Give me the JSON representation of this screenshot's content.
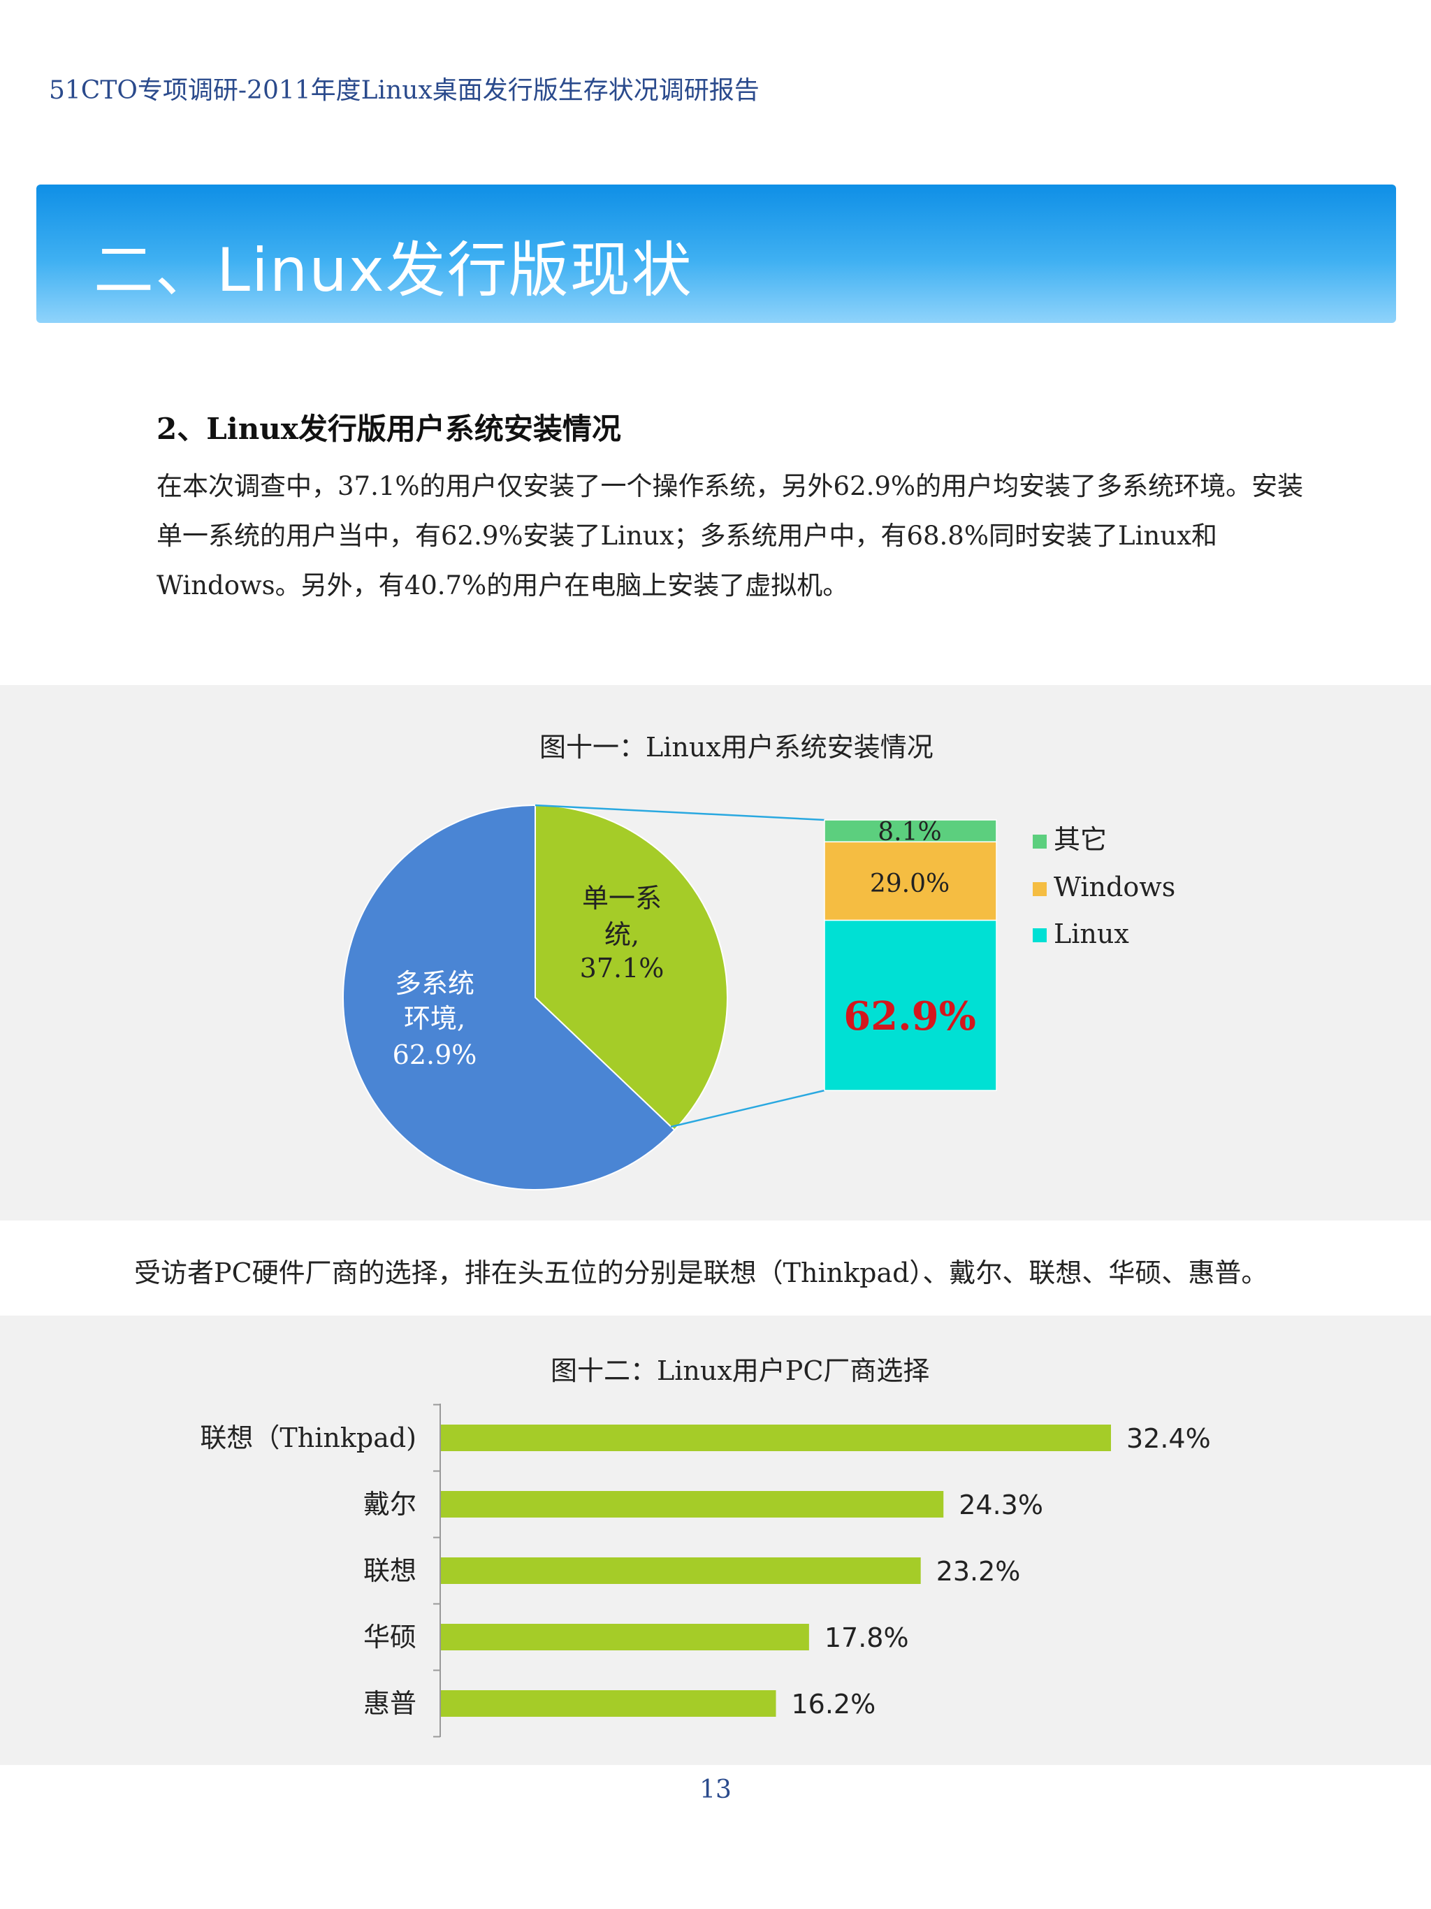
{
  "header": {
    "running_title": "51CTO专项调研-2011年度Linux桌面发行版生存状况调研报告"
  },
  "banner": {
    "title": "二、Linux发行版现状"
  },
  "section": {
    "heading": "2、Linux发行版用户系统安装情况",
    "paragraph": "在本次调查中，37.1%的用户仅安装了一个操作系统，另外62.9%的用户均安装了多系统环境。安装单一系统的用户当中，有62.9%安装了Linux；多系统用户中，有68.8%同时安装了Linux和Windows。另外，有40.7%的用户在电脑上安装了虚拟机。"
  },
  "figure11": {
    "title": "图十一：Linux用户系统安装情况",
    "pie_labels": {
      "multi_line1": "多系统",
      "multi_line2": "环境,",
      "multi_value": "62.9%",
      "single_line1": "单一系",
      "single_line2": "统,",
      "single_value": "37.1%"
    },
    "stack_labels": {
      "other": "8.1%",
      "windows": "29.0%",
      "linux": "62.9%"
    },
    "legend": {
      "other": "其它",
      "windows": "Windows",
      "linux": "Linux"
    }
  },
  "between_text": "受访者PC硬件厂商的选择，排在头五位的分别是联想（Thinkpad）、戴尔、联想、华硕、惠普。",
  "figure12": {
    "title": "图十二：Linux用户PC厂商选择",
    "bar_labels": [
      "32.4%",
      "24.3%",
      "23.2%",
      "17.8%",
      "16.2%"
    ]
  },
  "chart_data": [
    {
      "type": "pie",
      "categories": [
        "多系统环境",
        "单一系统"
      ],
      "values": [
        62.9,
        37.1
      ],
      "colors": [
        "#4a85d4",
        "#a5cc28"
      ]
    },
    {
      "type": "bar",
      "orientation": "stacked",
      "categories": [
        "其它",
        "Windows",
        "Linux"
      ],
      "values": [
        8.1,
        29.0,
        62.9
      ],
      "colors": [
        "#5ccf7e",
        "#f5bd42",
        "#00e0d4"
      ]
    },
    {
      "type": "bar",
      "orientation": "horizontal",
      "categories": [
        "联想（Thinkpad)",
        "戴尔",
        "联想",
        "华硕",
        "惠普"
      ],
      "values": [
        32.4,
        24.3,
        23.2,
        17.8,
        16.2
      ],
      "color": "#a5cc28"
    }
  ],
  "footer": {
    "page_number": "13"
  }
}
